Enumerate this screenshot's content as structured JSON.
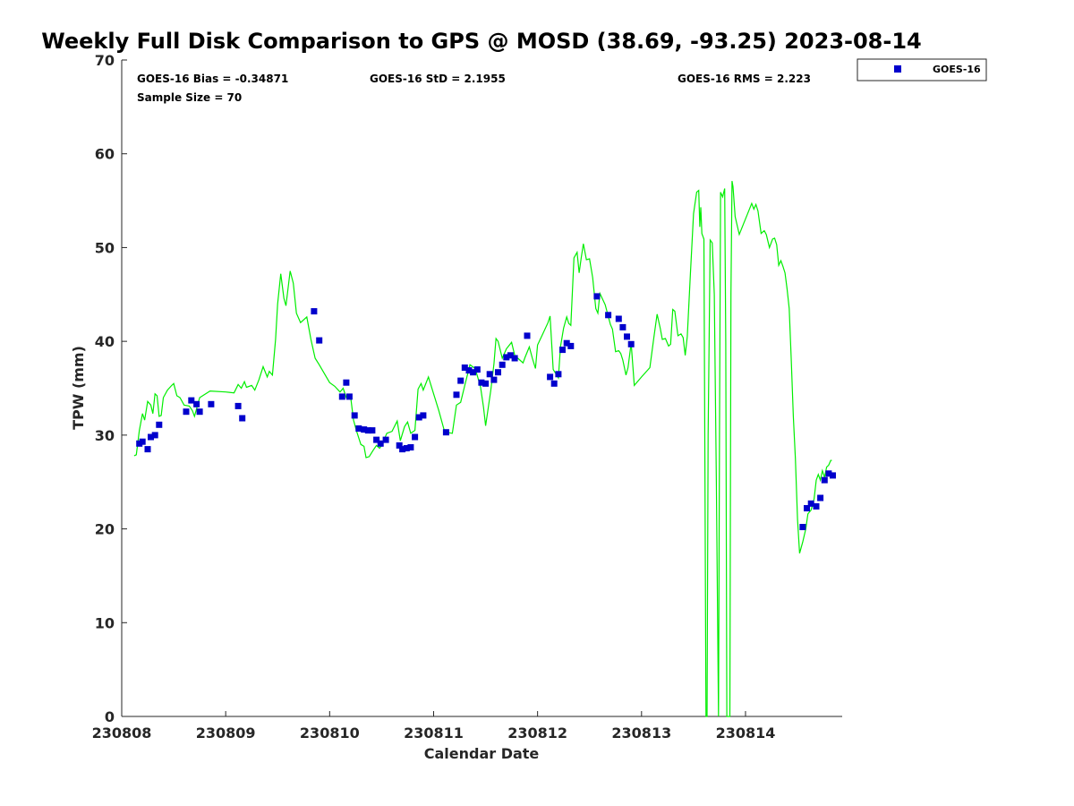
{
  "chart_data": {
    "type": "scatter",
    "title": "Weekly Full Disk Comparison to GPS @ MOSD (38.69, -93.25) 2023-08-14",
    "xlabel": "Calendar Date",
    "ylabel": "TPW (mm)",
    "xlim": [
      230808,
      230814.93
    ],
    "ylim": [
      0,
      70
    ],
    "x_tick_labels": [
      "230808",
      "230809",
      "230810",
      "230811",
      "230812",
      "230813",
      "230814"
    ],
    "y_ticks": [
      0,
      10,
      20,
      30,
      40,
      50,
      60,
      70
    ],
    "grid": false,
    "legend": {
      "position": "top-right",
      "entries": [
        "GOES-16"
      ]
    },
    "stats": {
      "bias": "GOES-16 Bias = -0.34871",
      "std": "GOES-16 StD = 2.1955",
      "rms": "GOES-16 RMS = 2.223",
      "sample": "Sample Size = 70"
    },
    "series": [
      {
        "name": "GPS",
        "kind": "line",
        "color": "#00ee00",
        "points": [
          [
            0.12,
            27.8
          ],
          [
            0.14,
            27.9
          ],
          [
            0.17,
            30.5
          ],
          [
            0.2,
            32.3
          ],
          [
            0.22,
            31.6
          ],
          [
            0.25,
            33.6
          ],
          [
            0.28,
            33.2
          ],
          [
            0.3,
            32.3
          ],
          [
            0.32,
            34.4
          ],
          [
            0.34,
            34.2
          ],
          [
            0.36,
            32.0
          ],
          [
            0.38,
            32.1
          ],
          [
            0.4,
            34.0
          ],
          [
            0.44,
            34.8
          ],
          [
            0.48,
            35.3
          ],
          [
            0.5,
            35.5
          ],
          [
            0.53,
            34.2
          ],
          [
            0.56,
            34.0
          ],
          [
            0.6,
            33.2
          ],
          [
            0.65,
            33.1
          ],
          [
            0.68,
            32.6
          ],
          [
            0.7,
            32.0
          ],
          [
            0.75,
            34.0
          ],
          [
            0.85,
            34.7
          ],
          [
            1.0,
            34.6
          ],
          [
            1.08,
            34.5
          ],
          [
            1.12,
            35.4
          ],
          [
            1.15,
            35.0
          ],
          [
            1.18,
            35.7
          ],
          [
            1.2,
            35.1
          ],
          [
            1.25,
            35.3
          ],
          [
            1.28,
            34.8
          ],
          [
            1.32,
            35.9
          ],
          [
            1.36,
            37.3
          ],
          [
            1.4,
            36.2
          ],
          [
            1.42,
            36.8
          ],
          [
            1.45,
            36.4
          ],
          [
            1.48,
            40.2
          ],
          [
            1.5,
            44.0
          ],
          [
            1.53,
            47.2
          ],
          [
            1.56,
            44.6
          ],
          [
            1.58,
            43.8
          ],
          [
            1.62,
            47.5
          ],
          [
            1.65,
            46.2
          ],
          [
            1.68,
            43.0
          ],
          [
            1.72,
            42.0
          ],
          [
            1.78,
            42.6
          ],
          [
            1.82,
            40.2
          ],
          [
            1.86,
            38.2
          ],
          [
            1.9,
            37.5
          ],
          [
            2.0,
            35.6
          ],
          [
            2.05,
            35.2
          ],
          [
            2.1,
            34.6
          ],
          [
            2.13,
            35.0
          ],
          [
            2.16,
            34.0
          ],
          [
            2.2,
            34.2
          ],
          [
            2.23,
            31.6
          ],
          [
            2.26,
            30.4
          ],
          [
            2.3,
            29.0
          ],
          [
            2.33,
            28.8
          ],
          [
            2.35,
            27.6
          ],
          [
            2.38,
            27.7
          ],
          [
            2.42,
            28.4
          ],
          [
            2.45,
            28.9
          ],
          [
            2.48,
            28.6
          ],
          [
            2.5,
            28.9
          ],
          [
            2.55,
            30.2
          ],
          [
            2.6,
            30.4
          ],
          [
            2.65,
            31.5
          ],
          [
            2.68,
            29.4
          ],
          [
            2.72,
            30.9
          ],
          [
            2.75,
            31.4
          ],
          [
            2.78,
            30.2
          ],
          [
            2.82,
            30.5
          ],
          [
            2.85,
            34.9
          ],
          [
            2.88,
            35.5
          ],
          [
            2.9,
            34.8
          ],
          [
            2.95,
            36.2
          ],
          [
            3.0,
            34.4
          ],
          [
            3.05,
            32.6
          ],
          [
            3.1,
            30.6
          ],
          [
            3.12,
            30.3
          ],
          [
            3.18,
            30.2
          ],
          [
            3.22,
            33.2
          ],
          [
            3.26,
            33.5
          ],
          [
            3.3,
            35.3
          ],
          [
            3.35,
            37.5
          ],
          [
            3.4,
            37.1
          ],
          [
            3.45,
            35.2
          ],
          [
            3.48,
            33.0
          ],
          [
            3.5,
            31.0
          ],
          [
            3.52,
            32.5
          ],
          [
            3.55,
            34.8
          ],
          [
            3.58,
            37.6
          ],
          [
            3.6,
            40.3
          ],
          [
            3.62,
            40.0
          ],
          [
            3.66,
            38.2
          ],
          [
            3.7,
            39.2
          ],
          [
            3.75,
            39.9
          ],
          [
            3.78,
            38.5
          ],
          [
            3.82,
            38.1
          ],
          [
            3.86,
            37.7
          ],
          [
            3.88,
            38.3
          ],
          [
            3.92,
            39.4
          ],
          [
            3.95,
            38.2
          ],
          [
            3.98,
            37.1
          ],
          [
            4.0,
            39.6
          ],
          [
            4.05,
            40.8
          ],
          [
            4.1,
            42.0
          ],
          [
            4.12,
            42.7
          ],
          [
            4.15,
            37.0
          ],
          [
            4.2,
            36.1
          ],
          [
            4.22,
            39.4
          ],
          [
            4.25,
            41.4
          ],
          [
            4.28,
            42.6
          ],
          [
            4.3,
            41.9
          ],
          [
            4.32,
            41.7
          ],
          [
            4.35,
            48.9
          ],
          [
            4.38,
            49.5
          ],
          [
            4.4,
            47.3
          ],
          [
            4.42,
            48.9
          ],
          [
            4.44,
            50.4
          ],
          [
            4.47,
            48.7
          ],
          [
            4.5,
            48.8
          ],
          [
            4.53,
            46.8
          ],
          [
            4.56,
            43.5
          ],
          [
            4.58,
            43.0
          ],
          [
            4.6,
            45.1
          ],
          [
            4.65,
            43.9
          ],
          [
            4.7,
            41.8
          ],
          [
            4.72,
            41.3
          ],
          [
            4.75,
            38.9
          ],
          [
            4.78,
            39.0
          ],
          [
            4.8,
            38.7
          ],
          [
            4.82,
            38.0
          ],
          [
            4.85,
            36.4
          ],
          [
            4.87,
            37.2
          ],
          [
            4.9,
            39.8
          ],
          [
            4.93,
            35.3
          ],
          [
            5.0,
            36.2
          ],
          [
            5.08,
            37.2
          ],
          [
            5.12,
            40.5
          ],
          [
            5.15,
            42.9
          ],
          [
            5.18,
            41.4
          ],
          [
            5.2,
            40.2
          ],
          [
            5.23,
            40.3
          ],
          [
            5.26,
            39.5
          ],
          [
            5.28,
            39.7
          ],
          [
            5.3,
            43.4
          ],
          [
            5.32,
            43.2
          ],
          [
            5.35,
            40.6
          ],
          [
            5.38,
            40.8
          ],
          [
            5.4,
            40.4
          ],
          [
            5.42,
            38.5
          ],
          [
            5.44,
            40.5
          ],
          [
            5.47,
            47.2
          ],
          [
            5.5,
            53.6
          ],
          [
            5.53,
            55.9
          ],
          [
            5.55,
            56.1
          ],
          [
            5.56,
            52.2
          ],
          [
            5.57,
            54.3
          ],
          [
            5.58,
            51.5
          ],
          [
            5.6,
            50.9
          ],
          [
            5.61,
            25.0
          ],
          [
            5.62,
            0.0
          ],
          [
            5.63,
            0.0
          ],
          [
            5.64,
            30.0
          ],
          [
            5.66,
            50.8
          ],
          [
            5.68,
            50.5
          ],
          [
            5.7,
            45.0
          ],
          [
            5.72,
            25.0
          ],
          [
            5.74,
            0.0
          ],
          [
            5.75,
            30.0
          ],
          [
            5.76,
            55.9
          ],
          [
            5.78,
            55.4
          ],
          [
            5.8,
            56.3
          ],
          [
            5.81,
            40.0
          ],
          [
            5.82,
            0.0
          ],
          [
            5.83,
            0.0
          ],
          [
            5.85,
            0.0
          ],
          [
            5.86,
            45.0
          ],
          [
            5.87,
            57.1
          ],
          [
            5.88,
            56.5
          ],
          [
            5.9,
            53.3
          ],
          [
            5.94,
            51.4
          ],
          [
            5.98,
            52.5
          ],
          [
            6.02,
            53.6
          ],
          [
            6.06,
            54.7
          ],
          [
            6.08,
            54.1
          ],
          [
            6.1,
            54.6
          ],
          [
            6.12,
            53.9
          ],
          [
            6.15,
            51.5
          ],
          [
            6.18,
            51.8
          ],
          [
            6.2,
            51.4
          ],
          [
            6.23,
            50.0
          ],
          [
            6.26,
            50.9
          ],
          [
            6.28,
            51.0
          ],
          [
            6.3,
            50.3
          ],
          [
            6.32,
            48.1
          ],
          [
            6.34,
            48.6
          ],
          [
            6.36,
            48.0
          ],
          [
            6.38,
            47.3
          ],
          [
            6.4,
            45.6
          ],
          [
            6.42,
            43.5
          ],
          [
            6.44,
            38.0
          ],
          [
            6.46,
            32.0
          ],
          [
            6.48,
            27.5
          ],
          [
            6.5,
            21.0
          ],
          [
            6.52,
            17.4
          ],
          [
            6.55,
            18.6
          ],
          [
            6.58,
            20.0
          ],
          [
            6.6,
            21.6
          ],
          [
            6.63,
            22.0
          ],
          [
            6.66,
            23.2
          ],
          [
            6.68,
            25.2
          ],
          [
            6.7,
            25.8
          ],
          [
            6.72,
            25.2
          ],
          [
            6.74,
            26.2
          ],
          [
            6.76,
            25.5
          ],
          [
            6.78,
            26.6
          ],
          [
            6.8,
            26.8
          ],
          [
            6.82,
            27.3
          ],
          [
            6.83,
            27.3
          ]
        ]
      },
      {
        "name": "GOES-16",
        "kind": "marker",
        "color": "#0000cc",
        "points": [
          [
            0.17,
            29.1
          ],
          [
            0.2,
            29.3
          ],
          [
            0.25,
            28.5
          ],
          [
            0.28,
            29.8
          ],
          [
            0.32,
            30.0
          ],
          [
            0.36,
            31.1
          ],
          [
            0.62,
            32.5
          ],
          [
            0.67,
            33.7
          ],
          [
            0.72,
            33.3
          ],
          [
            0.75,
            32.5
          ],
          [
            0.86,
            33.3
          ],
          [
            1.12,
            33.1
          ],
          [
            1.16,
            31.8
          ],
          [
            1.85,
            43.2
          ],
          [
            1.9,
            40.1
          ],
          [
            2.12,
            34.1
          ],
          [
            2.16,
            35.6
          ],
          [
            2.19,
            34.1
          ],
          [
            2.24,
            32.1
          ],
          [
            2.28,
            30.7
          ],
          [
            2.33,
            30.6
          ],
          [
            2.37,
            30.5
          ],
          [
            2.41,
            30.5
          ],
          [
            2.45,
            29.5
          ],
          [
            2.49,
            29.1
          ],
          [
            2.54,
            29.5
          ],
          [
            2.67,
            28.9
          ],
          [
            2.7,
            28.5
          ],
          [
            2.74,
            28.6
          ],
          [
            2.78,
            28.7
          ],
          [
            2.82,
            29.8
          ],
          [
            2.86,
            31.9
          ],
          [
            2.9,
            32.1
          ],
          [
            3.12,
            30.3
          ],
          [
            3.22,
            34.3
          ],
          [
            3.26,
            35.8
          ],
          [
            3.3,
            37.2
          ],
          [
            3.34,
            36.9
          ],
          [
            3.38,
            36.7
          ],
          [
            3.42,
            37.0
          ],
          [
            3.46,
            35.6
          ],
          [
            3.5,
            35.5
          ],
          [
            3.54,
            36.5
          ],
          [
            3.58,
            35.9
          ],
          [
            3.62,
            36.7
          ],
          [
            3.66,
            37.5
          ],
          [
            3.7,
            38.3
          ],
          [
            3.74,
            38.5
          ],
          [
            3.78,
            38.2
          ],
          [
            3.9,
            40.6
          ],
          [
            4.12,
            36.2
          ],
          [
            4.16,
            35.5
          ],
          [
            4.2,
            36.5
          ],
          [
            4.24,
            39.1
          ],
          [
            4.28,
            39.8
          ],
          [
            4.32,
            39.5
          ],
          [
            4.57,
            44.8
          ],
          [
            4.68,
            42.8
          ],
          [
            4.78,
            42.4
          ],
          [
            4.82,
            41.5
          ],
          [
            4.86,
            40.5
          ],
          [
            4.9,
            39.7
          ],
          [
            6.55,
            20.2
          ],
          [
            6.59,
            22.2
          ],
          [
            6.63,
            22.7
          ],
          [
            6.68,
            22.4
          ],
          [
            6.72,
            23.3
          ],
          [
            6.76,
            25.2
          ],
          [
            6.8,
            25.9
          ],
          [
            6.84,
            25.7
          ]
        ]
      }
    ]
  }
}
